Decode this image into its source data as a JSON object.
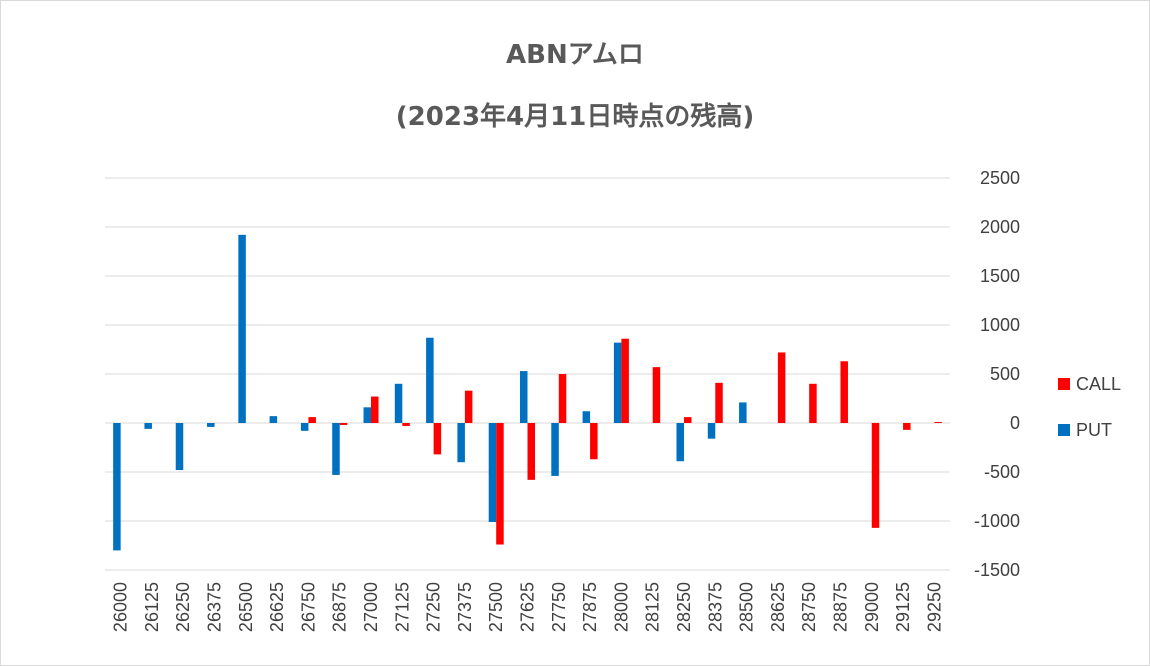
{
  "chart_data": {
    "type": "bar",
    "title": "ABNアムロ",
    "subtitle": "(2023年4月11日時点の残高)",
    "categories": [
      "26000",
      "26125",
      "26250",
      "26375",
      "26500",
      "26625",
      "26750",
      "26875",
      "27000",
      "27125",
      "27250",
      "27375",
      "27500",
      "27625",
      "27750",
      "27875",
      "28000",
      "28125",
      "28250",
      "28375",
      "28500",
      "28625",
      "28750",
      "28875",
      "29000",
      "29125",
      "29250"
    ],
    "series": [
      {
        "name": "CALL",
        "color": "#ff0000",
        "values": [
          0,
          0,
          0,
          0,
          0,
          0,
          60,
          -20,
          270,
          -30,
          -320,
          330,
          -1240,
          -580,
          500,
          -370,
          860,
          570,
          60,
          410,
          0,
          720,
          400,
          630,
          -1070,
          -70,
          10
        ]
      },
      {
        "name": "PUT",
        "color": "#0070c0",
        "values": [
          -1300,
          -60,
          -480,
          -40,
          1920,
          70,
          -80,
          -530,
          160,
          400,
          870,
          -400,
          -1010,
          530,
          -540,
          120,
          820,
          0,
          -390,
          -160,
          210,
          0,
          0,
          0,
          0,
          0,
          0
        ]
      }
    ],
    "ylim": [
      -1500,
      2500
    ],
    "yticks": [
      2500,
      2000,
      1500,
      1000,
      500,
      0,
      -500,
      -1000,
      -1500
    ],
    "xlabel": "",
    "ylabel": "",
    "grid": true,
    "legend_position": "right",
    "y_axis_side": "right"
  }
}
